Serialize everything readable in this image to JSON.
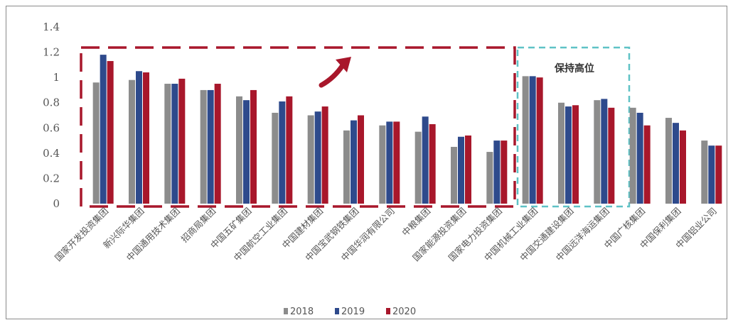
{
  "chart_data": {
    "type": "bar",
    "title": "",
    "xlabel": "",
    "ylabel": "",
    "ylim": [
      0,
      1.4
    ],
    "yticks": [
      "0",
      "0.2",
      "0.4",
      "0.6",
      "0.8",
      "1",
      "1.2",
      "1.4"
    ],
    "grid": false,
    "legend_position": "bottom",
    "categories": [
      "国家开发投资集团",
      "新兴际华集团",
      "中国通用技术集团",
      "招商局集团",
      "中国五矿集团",
      "中国航空工业集团",
      "中国建材集团",
      "中国宝武钢铁集团",
      "中国华润有限公司",
      "中粮集团",
      "国家能源投资集团",
      "国家电力投资集团",
      "中国机械工业集团",
      "中国交通建设集团",
      "中国远洋海运集团",
      "中国广核集团",
      "中国保利集团",
      "中国铝业公司"
    ],
    "series": [
      {
        "name": "2018",
        "color": "#8c8c8c",
        "values": [
          0.96,
          0.98,
          0.95,
          0.9,
          0.85,
          0.72,
          0.7,
          0.58,
          0.62,
          0.57,
          0.45,
          0.41,
          1.01,
          0.8,
          0.82,
          0.76,
          0.68,
          0.5
        ]
      },
      {
        "name": "2019",
        "color": "#2e4a8c",
        "values": [
          1.18,
          1.05,
          0.95,
          0.9,
          0.82,
          0.81,
          0.73,
          0.66,
          0.65,
          0.69,
          0.53,
          0.5,
          1.01,
          0.77,
          0.83,
          0.72,
          0.64,
          0.46
        ]
      },
      {
        "name": "2020",
        "color": "#a8172b",
        "values": [
          1.13,
          1.04,
          0.99,
          0.95,
          0.9,
          0.85,
          0.77,
          0.7,
          0.65,
          0.63,
          0.54,
          0.5,
          1.0,
          0.78,
          0.76,
          0.62,
          0.58,
          0.46
        ]
      }
    ],
    "annotations": {
      "rising_box_color": "#a8172b",
      "high_box_color": "#5fc2c6",
      "high_box_label": "保持高位",
      "arrow_color": "#a8172b"
    }
  }
}
